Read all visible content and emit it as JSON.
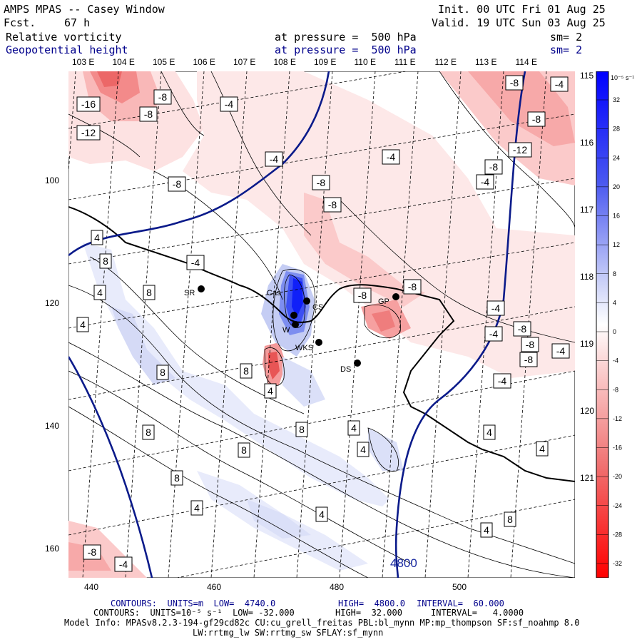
{
  "header": {
    "title": "AMPS MPAS -- Casey Window",
    "fcst_label": "Fcst.",
    "fcst_value": "67 h",
    "init": "Init. 00 UTC Fri 01 Aug 25",
    "valid": "Valid. 19 UTC Sun 03 Aug 25",
    "field1_name": "Relative vorticity",
    "field1_level": "at pressure =  500 hPa",
    "field1_sm": "sm= 2",
    "field2_name": "Geopotential height",
    "field2_level": "at pressure =  500 hPa",
    "field2_sm": "sm= 2"
  },
  "top_lon_labels": [
    "103 E",
    "104 E",
    "105 E",
    "106 E",
    "107 E",
    "108 E",
    "109 E",
    "110 E",
    "111 E",
    "112 E",
    "113 E",
    "114 E"
  ],
  "right_lon_labels": [
    "115 E",
    "116 E",
    "117 E",
    "118 E",
    "119 E",
    "120 E",
    "121 E"
  ],
  "x_axis_ticks": [
    "440",
    "460",
    "480",
    "500"
  ],
  "y_axis_ticks": [
    "100",
    "120",
    "140",
    "160"
  ],
  "stations": [
    "SR",
    "Cas",
    "CS",
    "GP",
    "WKS",
    "DS",
    "W"
  ],
  "contour_labels": [
    "-16",
    "-8",
    "-4",
    "-12",
    "-8",
    "-4",
    "-8",
    "-8",
    "-8",
    "-4",
    "-8",
    "-8",
    "-12",
    "-8",
    "-4",
    "-8",
    "-8",
    "-8",
    "4",
    "8",
    "4",
    "8",
    "4",
    "-4",
    "-8",
    "-4",
    "8",
    "4",
    "8",
    "8",
    "4",
    "8",
    "8",
    "4",
    "8",
    "4",
    "8",
    "4",
    "4",
    "4",
    "4",
    "-8",
    "-4",
    "-4",
    "-8",
    "-4",
    "-4",
    "-4"
  ],
  "height_label": "4800",
  "colorbar": {
    "unit": "10⁻⁵ s⁻¹",
    "ticks": [
      "32",
      "28",
      "24",
      "20",
      "16",
      "12",
      "8",
      "4",
      "0",
      "-4",
      "-8",
      "-12",
      "-16",
      "-20",
      "-24",
      "-28",
      "-32"
    ],
    "colors": {
      "max": "#0000ff",
      "mid": "#ffffff",
      "min": "#ff0000"
    }
  },
  "footer": {
    "contours1_a": "CONTOURS:  UNITS=m  LOW=  4740.0",
    "contours1_b": "HIGH=  4800.0",
    "contours1_c": "INTERVAL=  60.000",
    "contours2_a": "CONTOURS:  UNITS=10⁻⁵ s⁻¹  LOW= -32.000",
    "contours2_b": "HIGH=  32.000",
    "contours2_c": "INTERVAL=   4.0000",
    "model_info": "Model Info: MPASv8.2.3-194-gf29cd82c CU:cu_grell_freitas PBL:bl_mynn MP:mp_thompson SF:sf_noahmp 8.0",
    "model_info2": "LW:rrtmg_lw SW:rrtmg_sw SFLAY:sf_mynn"
  }
}
